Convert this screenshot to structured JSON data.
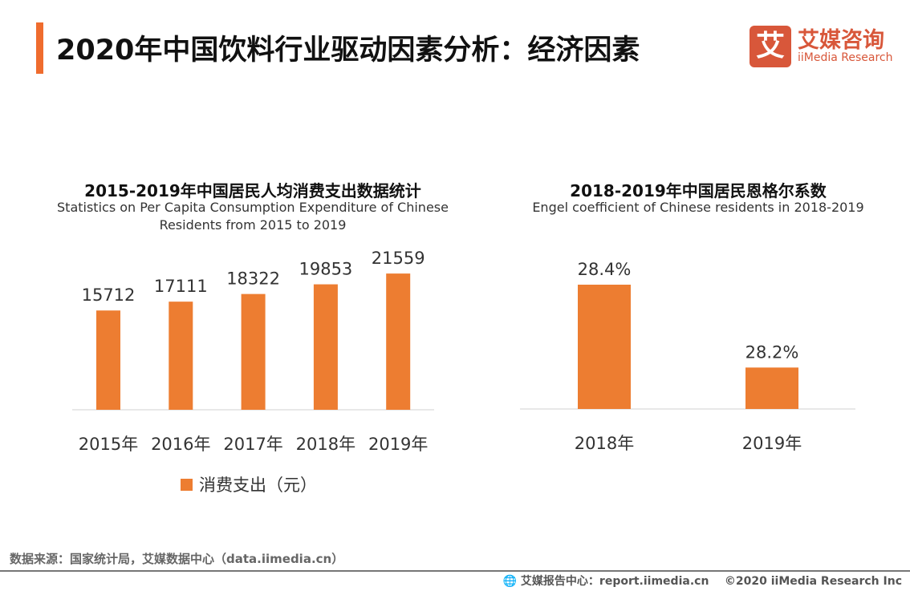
{
  "header": {
    "title": "2020年中国饮料行业驱动因素分析：经济因素",
    "accent_color": "#ef6c2e"
  },
  "logo": {
    "mark": "艾",
    "name_cn": "艾媒咨询",
    "name_en": "iiMedia Research",
    "color": "#d8573a"
  },
  "chart_data": [
    {
      "type": "bar",
      "title": "2015-2019年中国居民人均消费支出数据统计",
      "subtitle": "Statistics on Per Capita Consumption Expenditure of Chinese Residents from 2015 to 2019",
      "categories": [
        "2015年",
        "2016年",
        "2017年",
        "2018年",
        "2019年"
      ],
      "series": [
        {
          "name": "消费支出（元）",
          "values": [
            15712,
            17111,
            18322,
            19853,
            21559
          ],
          "color": "#ed7d31"
        }
      ],
      "data_labels": [
        "15712",
        "17111",
        "18322",
        "19853",
        "21559"
      ],
      "ylim": [
        0,
        25000
      ],
      "grid": false,
      "legend": "bottom"
    },
    {
      "type": "bar",
      "title": "2018-2019年中国居民恩格尔系数",
      "subtitle": "Engel coefficient of Chinese residents in 2018-2019",
      "categories": [
        "2018年",
        "2019年"
      ],
      "series": [
        {
          "values": [
            28.4,
            28.2
          ],
          "color": "#ed7d31"
        }
      ],
      "data_labels": [
        "28.4%",
        "28.2%"
      ],
      "ylim": [
        28.1,
        28.4
      ],
      "grid": false
    }
  ],
  "footer": {
    "source": "数据来源：国家统计局，艾媒数据中心（data.iimedia.cn）",
    "report": "艾媒报告中心：report.iimedia.cn",
    "copyright": "©2020  iiMedia Research  Inc"
  }
}
